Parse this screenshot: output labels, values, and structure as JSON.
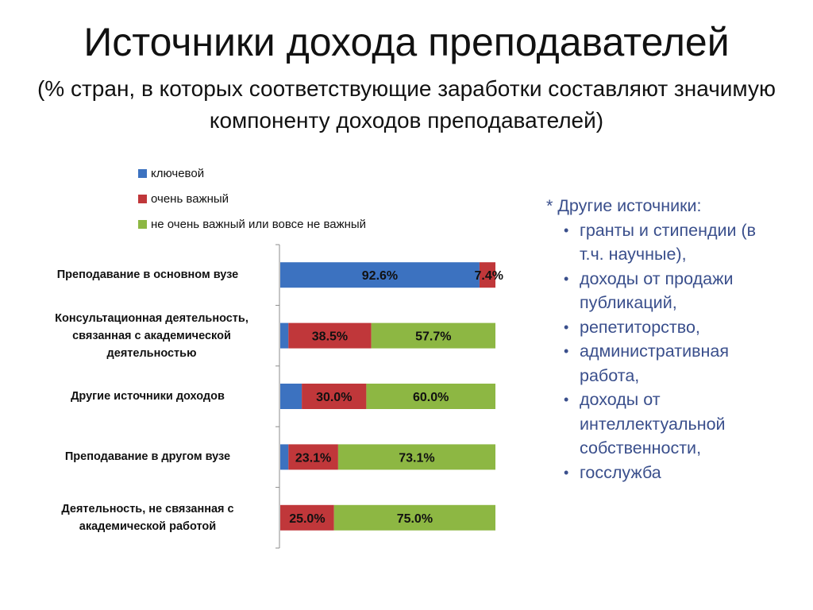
{
  "title": "Источники дохода преподавателей",
  "subtitle": "(% стран, в которых соответствующие заработки составляют значимую компоненту доходов преподавателей)",
  "colors": {
    "key": "#3c72c0",
    "very": "#c0373a",
    "not": "#8db743"
  },
  "chart_data": {
    "type": "bar",
    "orientation": "horizontal",
    "stacked": true,
    "categories": [
      "Преподавание в основном вузе",
      "Консультационная деятельность, связанная с академической деятельностью",
      "Другие источники доходов",
      "Преподавание в другом вузе",
      "Деятельность, не связанная с академической работой"
    ],
    "series": [
      {
        "name": "ключевой",
        "values": [
          92.6,
          3.8,
          10.0,
          3.8,
          0.0
        ],
        "labels": [
          "92.6%",
          "",
          "",
          "",
          ""
        ]
      },
      {
        "name": "очень важный",
        "values": [
          7.4,
          38.5,
          30.0,
          23.1,
          25.0
        ],
        "labels": [
          "7.4%",
          "38.5%",
          "30.0%",
          "23.1%",
          "25.0%"
        ]
      },
      {
        "name": "не очень важный или вовсе не важный",
        "values": [
          0.0,
          57.7,
          60.0,
          73.1,
          75.0
        ],
        "labels": [
          "",
          "57.7%",
          "60.0%",
          "73.1%",
          "75.0%"
        ]
      }
    ],
    "xlim": [
      0,
      100
    ],
    "legend": "top-left",
    "grid": false
  },
  "notes": {
    "heading": "* Другие источники:",
    "items": [
      "гранты и стипендии (в т.ч. научные),",
      "доходы от продажи публикаций,",
      "репетиторство,",
      "административная работа,",
      "доходы от интеллектуальной собственности,",
      "госслужба"
    ]
  }
}
